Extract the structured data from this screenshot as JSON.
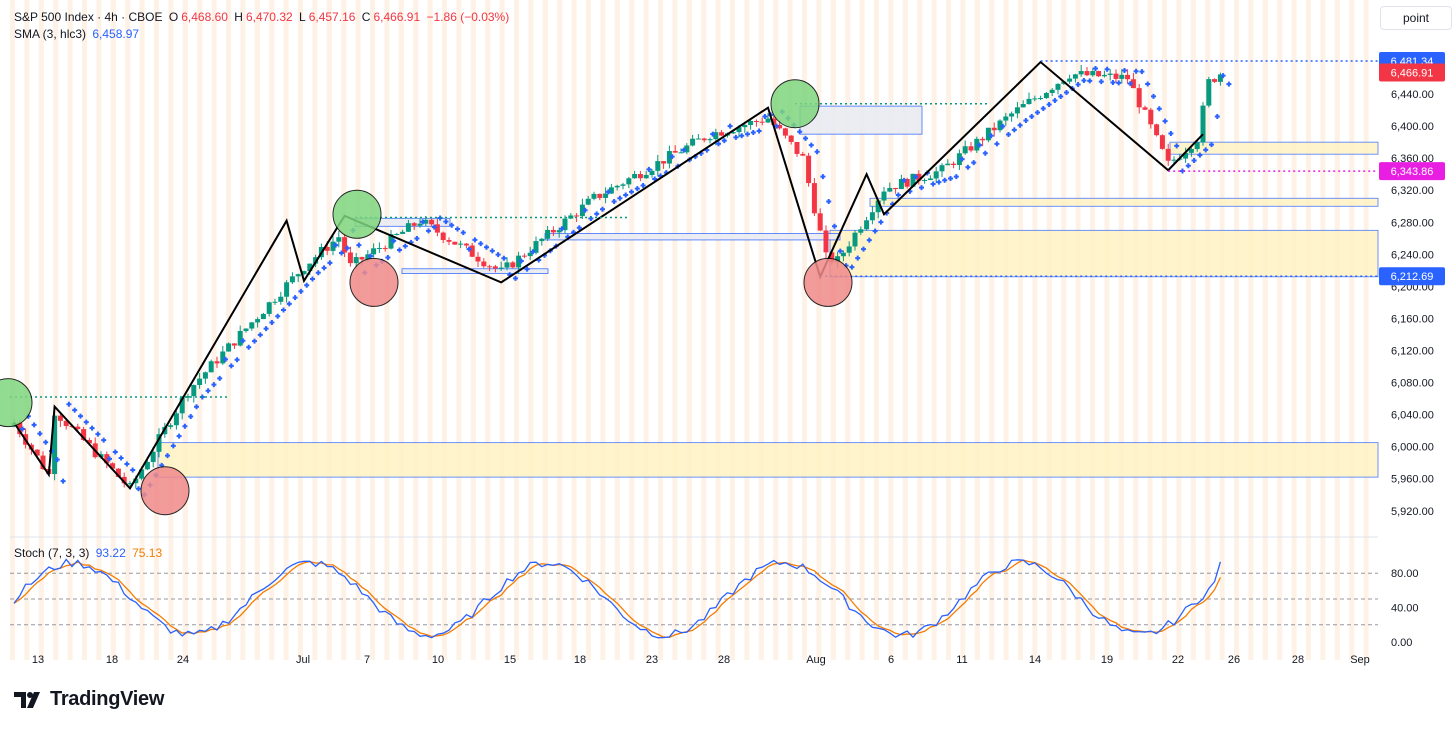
{
  "header": {
    "symbol": "S&P 500 Index · 4h · CBOE",
    "open_label": "O",
    "open": "6,468.60",
    "high_label": "H",
    "high": "6,470.32",
    "low_label": "L",
    "low": "6,457.16",
    "close_label": "C",
    "close": "6,466.91",
    "change": "−1.86 (−0.03%)",
    "sma_label": "SMA (3, hlc3)",
    "sma_value": "6,458.97",
    "stoch_label": "Stoch (7, 3, 3)",
    "stoch_k": "93.22",
    "stoch_d": "75.13"
  },
  "scale_mode": "point",
  "brand": "TradingView",
  "colors": {
    "up": "#089981",
    "down": "#f23645",
    "sma": "#2962ff",
    "stoch_k": "#2962ff",
    "stoch_d": "#f57c00",
    "zone": "#fff3c4",
    "zigzag": "#000000",
    "session_band": "#fde6cf"
  },
  "chart_data": {
    "type": "candlestick",
    "x_tick_labels": [
      "13",
      "18",
      "24",
      "Jul",
      "7",
      "10",
      "15",
      "18",
      "23",
      "28",
      "Aug",
      "6",
      "11",
      "14",
      "19",
      "22",
      "26",
      "28",
      "Sep"
    ],
    "y_ticks": [
      5920,
      5960,
      6000,
      6040,
      6080,
      6120,
      6160,
      6200,
      6240,
      6280,
      6320,
      6360,
      6400,
      6440
    ],
    "y_tick_labels": [
      "5,920.00",
      "5,960.00",
      "6,000.00",
      "6,040.00",
      "6,080.00",
      "6,120.00",
      "6,160.00",
      "6,200.00",
      "6,240.00",
      "6,280.00",
      "6,320.00",
      "6,360.00",
      "6,400.00",
      "6,440.00"
    ],
    "ylim": [
      5896,
      6510
    ],
    "price_labels": [
      {
        "value": 6481.34,
        "text": "6,481.34",
        "color": "#2962ff"
      },
      {
        "value": 6466.91,
        "text": "6,466.91",
        "color": "#f23645"
      },
      {
        "value": 6343.86,
        "text": "6,343.86",
        "color": "#e91ee3"
      },
      {
        "value": 6212.69,
        "text": "6,212.69",
        "color": "#2962ff"
      }
    ],
    "key_closes": [
      {
        "bar": 0,
        "close": 6030
      },
      {
        "bar": 6,
        "close": 5965
      },
      {
        "bar": 7,
        "close": 6045
      },
      {
        "bar": 20,
        "close": 5948
      },
      {
        "bar": 30,
        "close": 6070
      },
      {
        "bar": 50,
        "close": 6225
      },
      {
        "bar": 56,
        "close": 6262
      },
      {
        "bar": 58,
        "close": 6225
      },
      {
        "bar": 70,
        "close": 6282
      },
      {
        "bar": 84,
        "close": 6218
      },
      {
        "bar": 100,
        "close": 6310
      },
      {
        "bar": 120,
        "close": 6390
      },
      {
        "bar": 130,
        "close": 6410
      },
      {
        "bar": 136,
        "close": 6360
      },
      {
        "bar": 140,
        "close": 6236
      },
      {
        "bar": 142,
        "close": 6232
      },
      {
        "bar": 150,
        "close": 6322
      },
      {
        "bar": 160,
        "close": 6345
      },
      {
        "bar": 172,
        "close": 6415
      },
      {
        "bar": 182,
        "close": 6465
      },
      {
        "bar": 192,
        "close": 6460
      },
      {
        "bar": 199,
        "close": 6352
      },
      {
        "bar": 204,
        "close": 6385
      },
      {
        "bar": 206,
        "close": 6455
      },
      {
        "bar": 208,
        "close": 6466
      }
    ],
    "stoch_ylim": [
      0,
      100
    ],
    "stoch_ticks": [
      "80.00",
      "40.00",
      "0.00"
    ]
  }
}
